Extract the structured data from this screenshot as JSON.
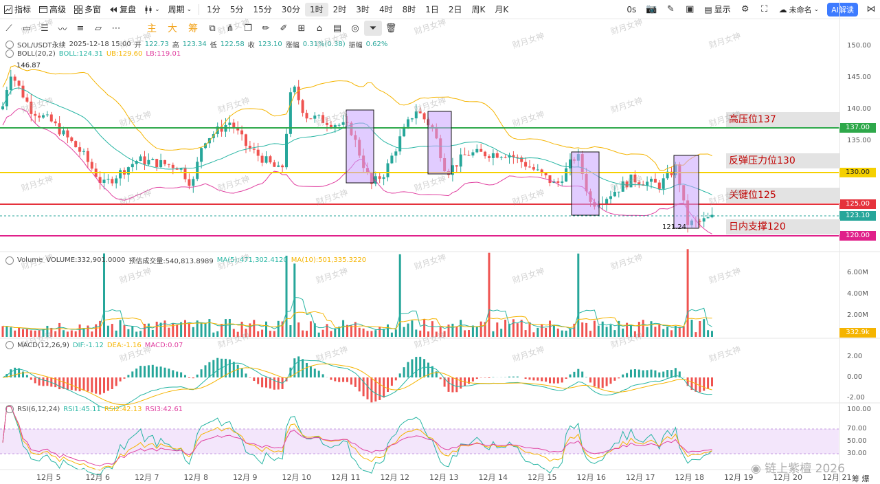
{
  "toolbar": {
    "indicator": "指标",
    "advanced": "高级",
    "multiwin": "多窗",
    "replay": "复盘",
    "period": "周期",
    "intervals": [
      "1分",
      "5分",
      "15分",
      "30分",
      "1时",
      "2时",
      "3时",
      "4时",
      "8时",
      "1日",
      "2日",
      "周K",
      "月K"
    ],
    "active_interval": "1时",
    "latency": "0s",
    "display": "显示",
    "unnamed": "未命名",
    "ai": "AI解读"
  },
  "drawbar": {
    "words": [
      "主",
      "大",
      "筹"
    ]
  },
  "legend": {
    "symbol": "SOL/USDT永续",
    "date": "2025-12-18 15:00",
    "open_label": "开",
    "open": "122.73",
    "high_label": "高",
    "high": "123.34",
    "low_label": "低",
    "low": "122.58",
    "close_label": "收",
    "close": "123.10",
    "change_label": "涨幅",
    "change": "0.31%(0.38)",
    "amp_label": "振幅",
    "amp": "0.62%",
    "boll": "BOLL(20,2)",
    "boll_mid": "BOLL:124.31",
    "boll_ub": "UB:129.60",
    "boll_lb": "LB:119.01",
    "vol_name": "Volume",
    "vol": "VOLUME:332,901.0000",
    "vol_est": "预估成交量:540,813.8989",
    "vol_ma5": "MA(5):471,302.4120",
    "vol_ma10": "MA(10):501,335.3220",
    "macd": "MACD(12,26,9)",
    "macd_dif": "DIF:-1.12",
    "macd_dea": "DEA:-1.16",
    "macd_val": "MACD:0.07",
    "rsi": "RSI(6,12,24)",
    "rsi1": "RSI1:45.11",
    "rsi2": "RSI2:42.13",
    "rsi3": "RSI3:42.61"
  },
  "price_axis": [
    "150.00",
    "145.00",
    "140.00",
    "135.00",
    "130.00",
    "125.00",
    "120.00"
  ],
  "price_tags": {
    "p137": "137.00",
    "p130": "130.00",
    "p125": "125.00",
    "p123": "123.10",
    "p120": "120.00"
  },
  "vol_axis": [
    "6.00M",
    "4.00M",
    "2.00M"
  ],
  "vol_tag": "332.9k",
  "macd_axis": [
    "2.00",
    "0.00",
    "-2.00"
  ],
  "rsi_axis": [
    "100.00",
    "70.00",
    "50.00",
    "30.00"
  ],
  "levels": {
    "l137": "高压位137",
    "l130": "反弹压力位130",
    "l125": "关键位125",
    "l120": "日内支撑120"
  },
  "high_mark": "146.87",
  "low_mark": "121.24",
  "x_labels": [
    "12月 5",
    "12月 6",
    "12月 7",
    "12月 8",
    "12月 9",
    "12月 10",
    "12月 11",
    "12月 12",
    "12月 13",
    "12月 14",
    "12月 15",
    "12月 16",
    "12月 17",
    "12月 18",
    "12月 19",
    "12月 20",
    "12月 21"
  ],
  "watermark": "财月女神",
  "footer_watermark": "链上紫檀 2026",
  "footer_corner": "筹 爆",
  "colors": {
    "up": "#26a69a",
    "down": "#ef5350",
    "boll_mid": "#26b5a3",
    "boll_ub": "#f5b400",
    "boll_lb": "#e040a0",
    "box": "#c9a3ff"
  }
}
